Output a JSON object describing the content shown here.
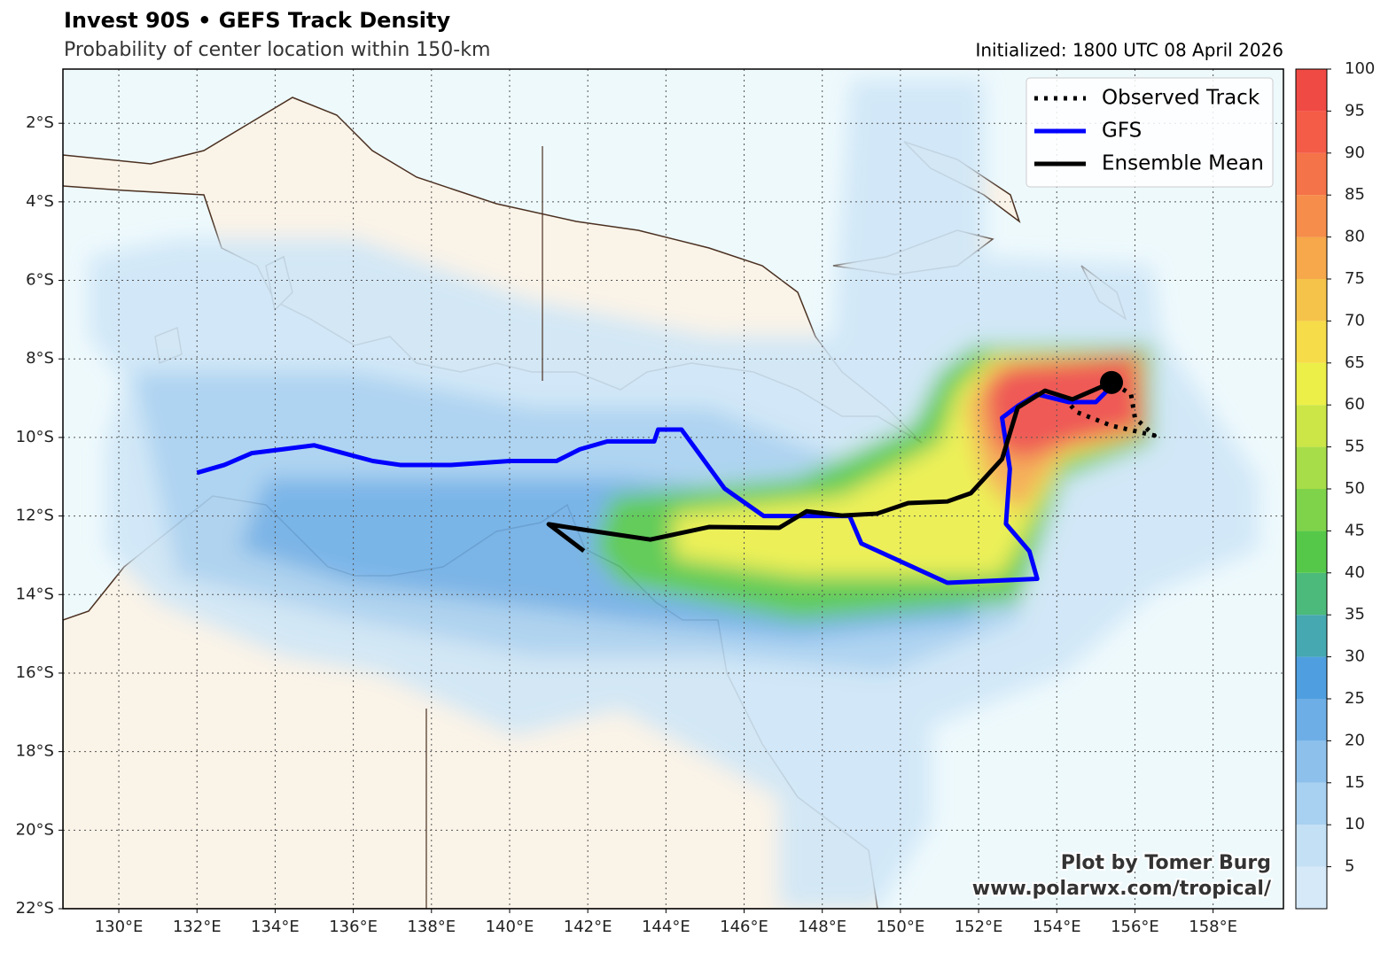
{
  "header": {
    "title": "Invest 90S • GEFS Track Density",
    "subtitle": "Probability of center location within 150-km",
    "initialized": "Initialized: 1800 UTC 08 April 2026"
  },
  "map": {
    "type": "map",
    "xlim": [
      128.57,
      159.8
    ],
    "ylim": [
      -22,
      -0.62
    ],
    "grid": true,
    "land_color": "#faf3e8",
    "ocean_color": "#eef9fc",
    "legend_position": "upper right",
    "xticks": [
      {
        "value": 130,
        "label": "130°E"
      },
      {
        "value": 132,
        "label": "132°E"
      },
      {
        "value": 134,
        "label": "134°E"
      },
      {
        "value": 136,
        "label": "136°E"
      },
      {
        "value": 138,
        "label": "138°E"
      },
      {
        "value": 140,
        "label": "140°E"
      },
      {
        "value": 142,
        "label": "142°E"
      },
      {
        "value": 144,
        "label": "144°E"
      },
      {
        "value": 146,
        "label": "146°E"
      },
      {
        "value": 148,
        "label": "148°E"
      },
      {
        "value": 150,
        "label": "150°E"
      },
      {
        "value": 152,
        "label": "152°E"
      },
      {
        "value": 154,
        "label": "154°E"
      },
      {
        "value": 156,
        "label": "156°E"
      },
      {
        "value": 158,
        "label": "158°E"
      }
    ],
    "yticks": [
      {
        "value": -2,
        "label": "2°S"
      },
      {
        "value": -4,
        "label": "4°S"
      },
      {
        "value": -6,
        "label": "6°S"
      },
      {
        "value": -8,
        "label": "8°S"
      },
      {
        "value": -10,
        "label": "10°S"
      },
      {
        "value": -12,
        "label": "12°S"
      },
      {
        "value": -14,
        "label": "14°S"
      },
      {
        "value": -16,
        "label": "16°S"
      },
      {
        "value": -18,
        "label": "18°S"
      },
      {
        "value": -20,
        "label": "20°S"
      },
      {
        "value": -22,
        "label": "22°S"
      }
    ],
    "series": [
      {
        "name": "Observed Track",
        "color": "#000000",
        "style": "dotted",
        "lon": [
          154.2,
          154.5,
          155.4,
          156.5,
          156.0,
          155.9,
          155.4
        ],
        "lat": [
          -9.0,
          -9.35,
          -9.7,
          -9.95,
          -9.5,
          -8.9,
          -8.6
        ]
      },
      {
        "name": "GFS",
        "color": "#0000ff",
        "style": "solid",
        "lon": [
          155.4,
          155.0,
          154.3,
          153.5,
          153.0,
          152.6,
          152.8,
          152.7,
          153.3,
          153.5,
          151.2,
          149.0,
          148.7,
          148.0,
          146.5,
          145.5,
          144.4,
          143.8,
          143.7,
          142.5,
          141.8,
          141.2,
          140.0,
          138.5,
          137.2,
          136.5,
          135.0,
          134.2,
          133.4,
          132.7,
          132.0
        ],
        "lat": [
          -8.7,
          -9.1,
          -9.1,
          -8.9,
          -9.2,
          -9.5,
          -10.8,
          -12.2,
          -12.9,
          -13.6,
          -13.7,
          -12.7,
          -12.0,
          -12.0,
          -12.0,
          -11.3,
          -9.8,
          -9.8,
          -10.1,
          -10.1,
          -10.3,
          -10.6,
          -10.6,
          -10.7,
          -10.7,
          -10.6,
          -10.2,
          -10.3,
          -10.4,
          -10.7,
          -10.9
        ]
      },
      {
        "name": "Ensemble Mean",
        "color": "#000000",
        "style": "solid",
        "lon": [
          155.4,
          154.4,
          153.7,
          153.0,
          152.6,
          151.8,
          151.2,
          150.2,
          149.4,
          148.5,
          147.6,
          146.9,
          145.1,
          143.6,
          141.9,
          141.0,
          141.9
        ],
        "lat": [
          -8.6,
          -9.03,
          -8.81,
          -9.24,
          -10.55,
          -11.42,
          -11.63,
          -11.67,
          -11.94,
          -11.99,
          -11.88,
          -12.3,
          -12.28,
          -12.6,
          -12.35,
          -12.21,
          -12.89
        ]
      }
    ],
    "current_position": {
      "lon": 155.4,
      "lat": -8.6
    }
  },
  "colorbar": {
    "range": [
      0,
      100
    ],
    "levels": [
      0,
      5,
      10,
      15,
      20,
      25,
      30,
      35,
      40,
      45,
      50,
      55,
      60,
      65,
      70,
      75,
      80,
      85,
      90,
      95,
      100
    ],
    "colors": [
      "#d6e9f8",
      "#c4e0f5",
      "#a8d0f0",
      "#8ec0ec",
      "#6eaee6",
      "#4f9fe0",
      "#46a8b0",
      "#4cba7a",
      "#55c84a",
      "#7fd34a",
      "#a7dd48",
      "#cbe646",
      "#ecef47",
      "#f6dc48",
      "#f6c34a",
      "#f6a84a",
      "#f68d4a",
      "#f57348",
      "#f45c47",
      "#f04a45"
    ],
    "ticks": [
      5,
      10,
      15,
      20,
      25,
      30,
      35,
      40,
      45,
      50,
      55,
      60,
      65,
      70,
      75,
      80,
      85,
      90,
      95,
      100
    ]
  },
  "credit": [
    "Plot by Tomer Burg",
    "www.polarwx.com/tropical/"
  ]
}
